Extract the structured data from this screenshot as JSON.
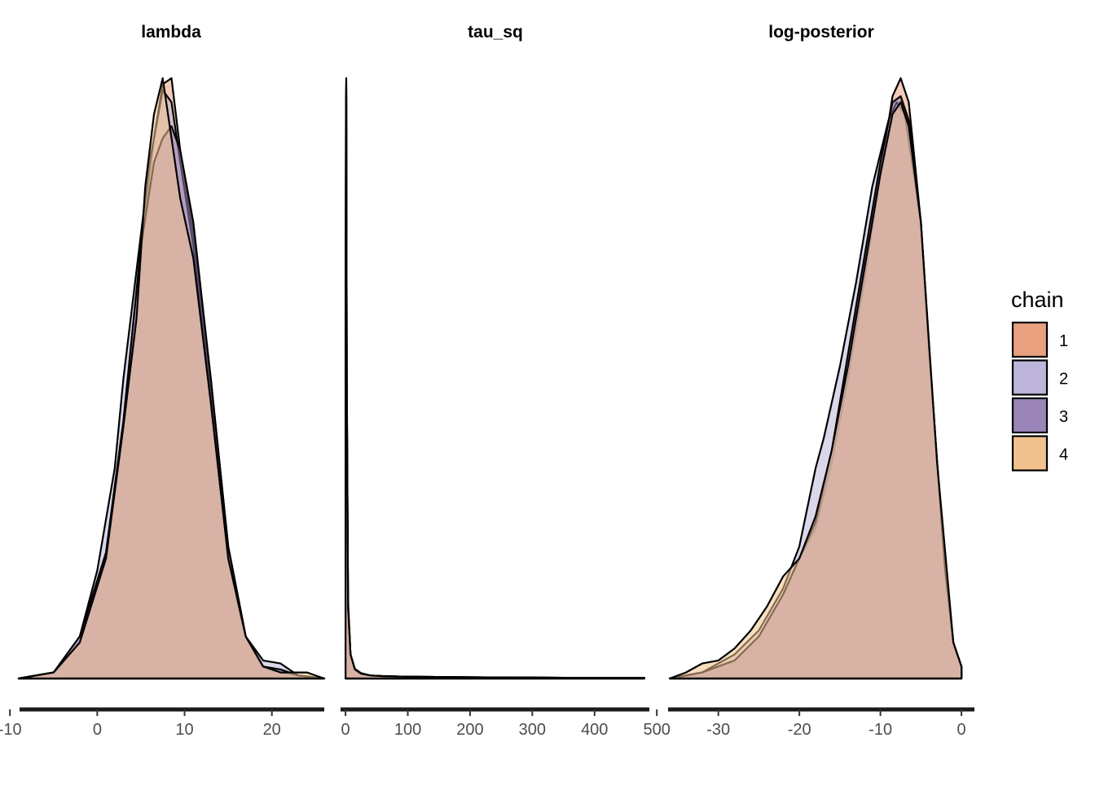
{
  "chart_data": {
    "type": "area",
    "description_free": true,
    "legend": {
      "title": "chain",
      "position": "right",
      "entries": [
        {
          "label": "1",
          "color": "#E8A07F"
        },
        {
          "label": "2",
          "color": "#BDB6DA"
        },
        {
          "label": "3",
          "color": "#9B84B8"
        },
        {
          "label": "4",
          "color": "#F2C28E"
        }
      ]
    },
    "overlap_color": "#B5735C",
    "outline_color": "#000000",
    "grid": false,
    "facets": [
      {
        "title": "lambda",
        "xlim": [
          -9,
          26
        ],
        "ticks": [
          -10,
          0,
          10,
          20
        ],
        "tick_labels": [
          "-10",
          "0",
          "10",
          "20"
        ],
        "density_max": 1,
        "chains": [
          {
            "chain": "1",
            "x": [
              -9,
              -5,
              -2,
              1,
              3,
              5,
              6.5,
              7.5,
              8.5,
              9.5,
              11,
              13,
              15,
              17,
              19,
              21,
              23,
              26
            ],
            "y": [
              0,
              0.01,
              0.06,
              0.2,
              0.42,
              0.72,
              0.9,
              0.99,
              1.0,
              0.88,
              0.74,
              0.5,
              0.22,
              0.07,
              0.02,
              0.01,
              0.005,
              0
            ]
          },
          {
            "chain": "2",
            "x": [
              -9,
              -5,
              -2,
              0,
              2,
              3,
              4.5,
              6,
              7.5,
              8.5,
              9.5,
              11,
              13,
              15,
              17,
              19,
              21,
              23,
              26
            ],
            "y": [
              0,
              0.01,
              0.07,
              0.18,
              0.35,
              0.5,
              0.68,
              0.86,
              0.98,
              0.96,
              0.86,
              0.72,
              0.48,
              0.22,
              0.07,
              0.03,
              0.025,
              0.005,
              0
            ]
          },
          {
            "chain": "3",
            "x": [
              -9,
              -5,
              -2,
              1,
              3,
              5,
              6.5,
              7.5,
              8.5,
              9.5,
              11,
              13,
              15,
              17,
              19,
              21,
              23,
              26
            ],
            "y": [
              0,
              0.01,
              0.07,
              0.21,
              0.43,
              0.72,
              0.86,
              0.9,
              0.92,
              0.88,
              0.76,
              0.5,
              0.22,
              0.07,
              0.02,
              0.015,
              0.005,
              0
            ]
          },
          {
            "chain": "4",
            "x": [
              -9,
              -5,
              -2,
              1,
              3,
              4.5,
              5.5,
              6.5,
              7.5,
              8.5,
              9.5,
              11,
              13,
              15,
              17,
              19,
              21,
              23,
              24,
              26
            ],
            "y": [
              0,
              0.01,
              0.06,
              0.2,
              0.42,
              0.6,
              0.82,
              0.94,
              1.0,
              0.9,
              0.8,
              0.7,
              0.46,
              0.2,
              0.07,
              0.02,
              0.01,
              0.01,
              0.01,
              0
            ]
          }
        ]
      },
      {
        "title": "tau_sq",
        "xlim": [
          0,
          480
        ],
        "ticks": [
          0,
          100,
          200,
          300,
          400,
          500
        ],
        "tick_labels": [
          "0",
          "100",
          "200",
          "300",
          "400",
          "500"
        ],
        "density_max": 1,
        "chains": [
          {
            "chain": "1",
            "x": [
              0,
              0.6,
              1.2,
              2,
              4,
              8,
              15,
              25,
              40,
              60,
              100,
              200,
              300,
              400,
              480
            ],
            "y": [
              0.37,
              0.95,
              1.0,
              0.5,
              0.12,
              0.04,
              0.015,
              0.008,
              0.005,
              0.004,
              0.003,
              0.002,
              0.0015,
              0.001,
              0.0008
            ]
          },
          {
            "chain": "2",
            "x": [
              0,
              0.6,
              1.2,
              2,
              4,
              8,
              15,
              25,
              40,
              60,
              100,
              200,
              300,
              400,
              480
            ],
            "y": [
              0.35,
              0.9,
              0.98,
              0.52,
              0.13,
              0.04,
              0.016,
              0.009,
              0.005,
              0.004,
              0.003,
              0.002,
              0.0015,
              0.001,
              0.0008
            ]
          },
          {
            "chain": "3",
            "x": [
              0,
              0.6,
              1.2,
              2,
              4,
              8,
              15,
              25,
              40,
              60,
              100,
              200,
              300,
              400,
              480
            ],
            "y": [
              0.36,
              0.92,
              0.97,
              0.48,
              0.12,
              0.04,
              0.015,
              0.008,
              0.005,
              0.004,
              0.003,
              0.002,
              0.0015,
              0.001,
              0.0008
            ]
          },
          {
            "chain": "4",
            "x": [
              0,
              0.6,
              1.2,
              2,
              4,
              8,
              15,
              25,
              40,
              60,
              100,
              200,
              300,
              400,
              480
            ],
            "y": [
              0.37,
              0.94,
              0.99,
              0.5,
              0.12,
              0.04,
              0.015,
              0.008,
              0.005,
              0.004,
              0.003,
              0.002,
              0.0015,
              0.001,
              0.0008
            ]
          }
        ]
      },
      {
        "title": "log-posterior",
        "xlim": [
          -36,
          0
        ],
        "ticks": [
          -30,
          -20,
          -10,
          0
        ],
        "tick_labels": [
          "-30",
          "-20",
          "-10",
          "0"
        ],
        "density_max": 1,
        "chains": [
          {
            "chain": "1",
            "x": [
              -36,
              -32,
              -28,
              -25,
              -22,
              -20,
              -18,
              -16,
              -14,
              -12,
              -10,
              -8.5,
              -7.5,
              -6.5,
              -5,
              -4,
              -3,
              -2,
              -1,
              0
            ],
            "y": [
              0,
              0.01,
              0.03,
              0.07,
              0.14,
              0.2,
              0.25,
              0.36,
              0.5,
              0.66,
              0.84,
              0.97,
              1.0,
              0.96,
              0.76,
              0.55,
              0.36,
              0.18,
              0.06,
              0.02
            ]
          },
          {
            "chain": "2",
            "x": [
              -36,
              -32,
              -28,
              -25,
              -22,
              -20,
              -18,
              -17,
              -15,
              -13,
              -11,
              -9,
              -8,
              -7,
              -5,
              -4,
              -3,
              -2,
              -1,
              0
            ],
            "y": [
              0,
              0.01,
              0.04,
              0.08,
              0.15,
              0.22,
              0.35,
              0.4,
              0.52,
              0.66,
              0.82,
              0.93,
              0.96,
              0.94,
              0.76,
              0.55,
              0.36,
              0.18,
              0.06,
              0.02
            ]
          },
          {
            "chain": "3",
            "x": [
              -36,
              -32,
              -28,
              -25,
              -22,
              -20,
              -18,
              -16,
              -14,
              -12,
              -10,
              -8.5,
              -7.5,
              -6.5,
              -5,
              -4,
              -3,
              -2,
              -1,
              0
            ],
            "y": [
              0,
              0.01,
              0.03,
              0.07,
              0.14,
              0.2,
              0.26,
              0.38,
              0.54,
              0.7,
              0.86,
              0.96,
              0.97,
              0.93,
              0.76,
              0.55,
              0.36,
              0.18,
              0.06,
              0.02
            ]
          },
          {
            "chain": "4",
            "x": [
              -36,
              -34,
              -32,
              -30,
              -28,
              -26,
              -24,
              -22,
              -20,
              -18,
              -16,
              -14,
              -12,
              -10,
              -8.5,
              -7.5,
              -6.5,
              -5,
              -3,
              -1,
              0
            ],
            "y": [
              0,
              0.01,
              0.025,
              0.03,
              0.05,
              0.08,
              0.12,
              0.17,
              0.2,
              0.27,
              0.38,
              0.52,
              0.68,
              0.84,
              0.94,
              0.96,
              0.92,
              0.76,
              0.36,
              0.06,
              0.02
            ]
          }
        ]
      }
    ]
  }
}
